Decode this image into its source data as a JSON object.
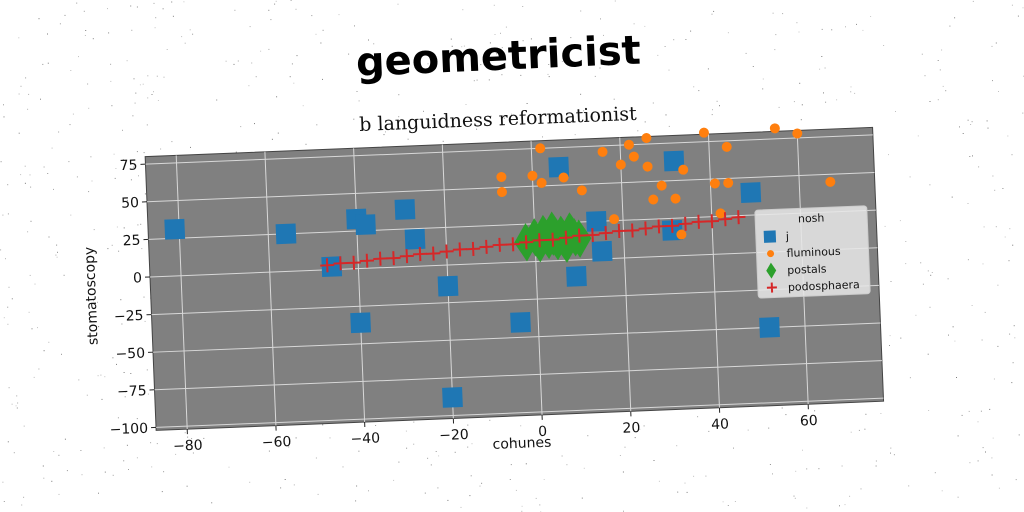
{
  "chart_data": {
    "type": "scatter",
    "title": "geometricist",
    "subtitle": "b languidness reformationist",
    "xlabel": "cohunes",
    "ylabel": "stomatoscopy",
    "xlim": [
      -87,
      77
    ],
    "ylim": [
      -102,
      80
    ],
    "xticks": [
      -80,
      -60,
      -40,
      -20,
      0,
      20,
      40,
      60
    ],
    "yticks": [
      -100,
      -75,
      -50,
      -25,
      0,
      25,
      50,
      75
    ],
    "grid": true,
    "legend": {
      "title": "nosh",
      "placement": "right"
    },
    "series": [
      {
        "name": "j",
        "marker": "square",
        "color": "#1f77b4",
        "points": [
          [
            -81,
            31
          ],
          [
            -56,
            25
          ],
          [
            -40,
            33
          ],
          [
            -38,
            29
          ],
          [
            -29,
            38
          ],
          [
            -27,
            18
          ],
          [
            -46,
            2
          ],
          [
            -20,
            -14
          ],
          [
            -40,
            -36
          ],
          [
            -4,
            -40
          ],
          [
            6,
            62
          ],
          [
            14,
            25
          ],
          [
            15,
            5
          ],
          [
            9,
            -11
          ],
          [
            32,
            63
          ],
          [
            31,
            17
          ],
          [
            49,
            40
          ],
          [
            52,
            -50
          ],
          [
            -20,
            -88
          ]
        ]
      },
      {
        "name": "fluminous",
        "marker": "circle",
        "color": "#ff7f0e",
        "points": [
          [
            2,
            75
          ],
          [
            16,
            71
          ],
          [
            20,
            62
          ],
          [
            22,
            75
          ],
          [
            23,
            67
          ],
          [
            26,
            60
          ],
          [
            26,
            79
          ],
          [
            29,
            47
          ],
          [
            32,
            38
          ],
          [
            34,
            57
          ],
          [
            39,
            81
          ],
          [
            41,
            47
          ],
          [
            44,
            71
          ],
          [
            44,
            47
          ],
          [
            55,
            82
          ],
          [
            60,
            78
          ],
          [
            67,
            45
          ],
          [
            42,
            27
          ],
          [
            -7,
            57
          ],
          [
            -7,
            47
          ],
          [
            0,
            57
          ],
          [
            2,
            52
          ],
          [
            7,
            55
          ],
          [
            11,
            46
          ],
          [
            33,
            14
          ],
          [
            27,
            38
          ],
          [
            18,
            26
          ]
        ]
      },
      {
        "name": "postals",
        "marker": "diamond",
        "color": "#2ca02c",
        "points": [
          [
            -2,
            13
          ],
          [
            0,
            16
          ],
          [
            1,
            12
          ],
          [
            2,
            18
          ],
          [
            3,
            14
          ],
          [
            4,
            20
          ],
          [
            5,
            13
          ],
          [
            6,
            17
          ],
          [
            7,
            11
          ],
          [
            8,
            19
          ],
          [
            9,
            15
          ],
          [
            10,
            14
          ],
          [
            4,
            16
          ]
        ]
      },
      {
        "name": "podosphaera",
        "marker": "plus",
        "color": "#d62728",
        "points": [
          [
            -47,
            3
          ],
          [
            -44,
            4
          ],
          [
            -41,
            4
          ],
          [
            -38,
            5
          ],
          [
            -35,
            6
          ],
          [
            -32,
            6
          ],
          [
            -29,
            7
          ],
          [
            -26,
            8
          ],
          [
            -23,
            8
          ],
          [
            -20,
            9
          ],
          [
            -17,
            10
          ],
          [
            -14,
            10
          ],
          [
            -11,
            11
          ],
          [
            -8,
            12
          ],
          [
            -5,
            12
          ],
          [
            -2,
            13
          ],
          [
            1,
            14
          ],
          [
            4,
            14
          ],
          [
            7,
            15
          ],
          [
            10,
            16
          ],
          [
            13,
            16
          ],
          [
            16,
            17
          ],
          [
            19,
            18
          ],
          [
            22,
            18
          ],
          [
            25,
            19
          ],
          [
            28,
            20
          ],
          [
            31,
            20
          ],
          [
            34,
            21
          ],
          [
            37,
            22
          ],
          [
            40,
            22
          ],
          [
            43,
            23
          ],
          [
            46,
            24
          ]
        ]
      }
    ]
  }
}
